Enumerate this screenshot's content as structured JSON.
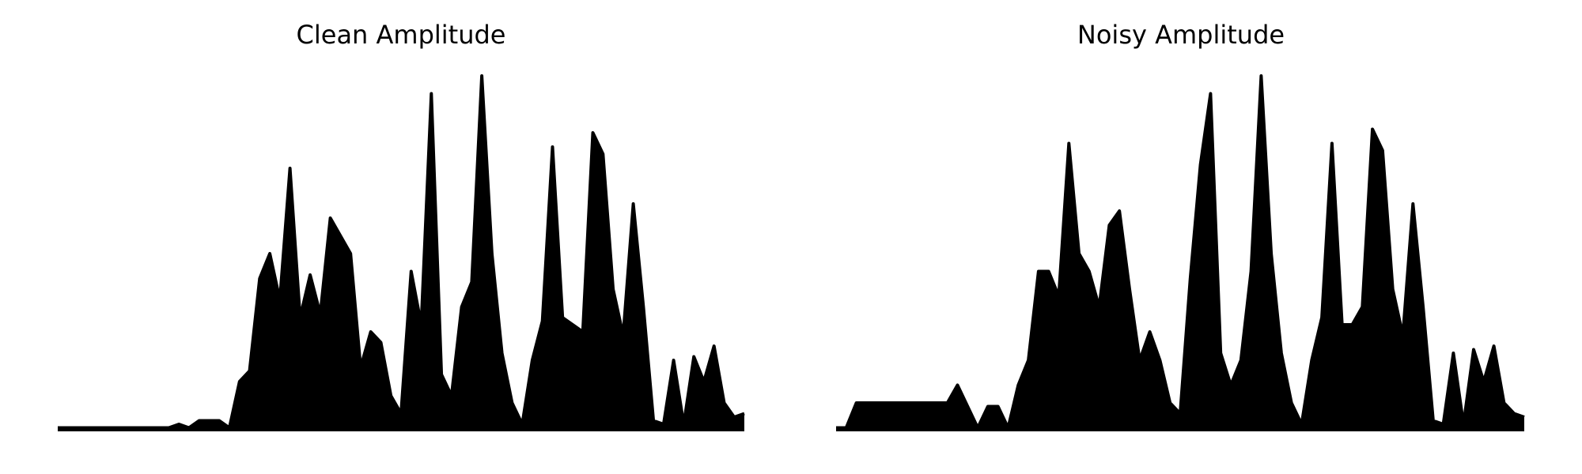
{
  "chart_data": [
    {
      "type": "area",
      "title": "Clean Amplitude",
      "color": "#000000",
      "ylim": [
        0,
        1
      ],
      "values": [
        0.01,
        0.01,
        0.01,
        0.01,
        0.01,
        0.01,
        0.01,
        0.01,
        0.01,
        0.01,
        0.01,
        0.01,
        0.02,
        0.01,
        0.03,
        0.03,
        0.03,
        0.01,
        0.14,
        0.17,
        0.43,
        0.5,
        0.37,
        0.74,
        0.32,
        0.44,
        0.33,
        0.6,
        0.55,
        0.5,
        0.18,
        0.28,
        0.25,
        0.1,
        0.05,
        0.45,
        0.3,
        0.95,
        0.16,
        0.1,
        0.35,
        0.42,
        1.0,
        0.5,
        0.22,
        0.08,
        0.02,
        0.2,
        0.31,
        0.8,
        0.32,
        0.3,
        0.28,
        0.84,
        0.78,
        0.4,
        0.27,
        0.64,
        0.35,
        0.03,
        0.02,
        0.2,
        0.02,
        0.21,
        0.14,
        0.24,
        0.08,
        0.04,
        0.05
      ]
    },
    {
      "type": "area",
      "title": "Noisy Amplitude",
      "color": "#000000",
      "ylim": [
        0,
        1
      ],
      "values": [
        0.01,
        0.01,
        0.08,
        0.08,
        0.08,
        0.08,
        0.08,
        0.08,
        0.08,
        0.08,
        0.08,
        0.08,
        0.13,
        0.07,
        0.01,
        0.07,
        0.07,
        0.01,
        0.13,
        0.2,
        0.45,
        0.45,
        0.38,
        0.81,
        0.5,
        0.45,
        0.35,
        0.58,
        0.62,
        0.4,
        0.2,
        0.28,
        0.2,
        0.08,
        0.05,
        0.43,
        0.75,
        0.95,
        0.22,
        0.13,
        0.2,
        0.45,
        1.0,
        0.5,
        0.22,
        0.08,
        0.02,
        0.2,
        0.32,
        0.81,
        0.3,
        0.3,
        0.35,
        0.85,
        0.79,
        0.4,
        0.27,
        0.64,
        0.35,
        0.03,
        0.02,
        0.22,
        0.02,
        0.23,
        0.14,
        0.24,
        0.08,
        0.05,
        0.04
      ]
    }
  ]
}
